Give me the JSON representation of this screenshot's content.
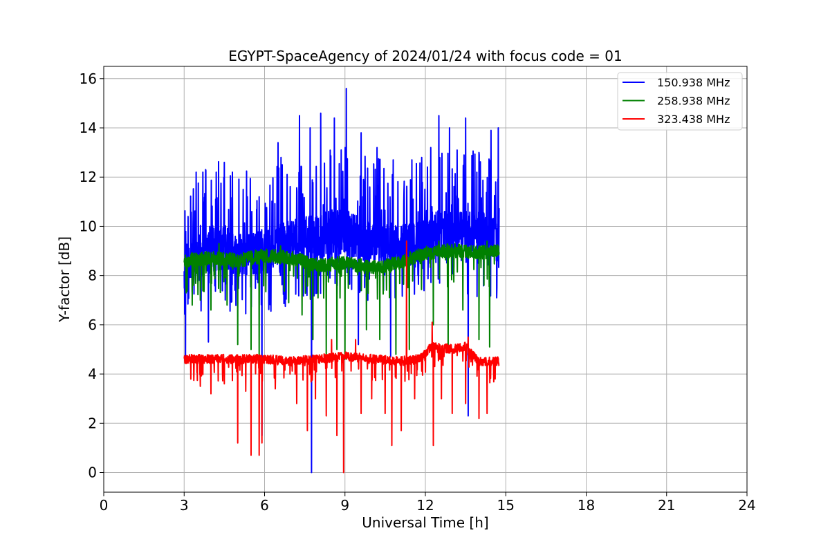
{
  "chart_data": {
    "type": "line",
    "title": "EGYPT-SpaceAgency of 2024/01/24 with focus code = 01",
    "xlabel": "Universal Time [h]",
    "ylabel": "Y-factor [dB]",
    "xlim": [
      0,
      24
    ],
    "ylim": [
      -0.8,
      16.5
    ],
    "xticks": [
      0,
      3,
      6,
      9,
      12,
      15,
      18,
      21,
      24
    ],
    "yticks": [
      0,
      2,
      4,
      6,
      8,
      10,
      12,
      14,
      16
    ],
    "grid": true,
    "legend_position": "top-right",
    "time_range": [
      3.0,
      14.75
    ],
    "series": [
      {
        "name": "150.938 MHz",
        "color": "#0000ff",
        "baseline": [
          [
            3.0,
            8.3
          ],
          [
            3.5,
            8.8
          ],
          [
            4.0,
            9.0
          ],
          [
            4.5,
            9.2
          ],
          [
            5.0,
            8.8
          ],
          [
            5.5,
            9.0
          ],
          [
            6.0,
            9.0
          ],
          [
            6.5,
            9.2
          ],
          [
            7.0,
            9.4
          ],
          [
            7.5,
            9.5
          ],
          [
            8.0,
            9.6
          ],
          [
            8.5,
            9.8
          ],
          [
            9.0,
            9.8
          ],
          [
            9.5,
            9.6
          ],
          [
            10.0,
            9.4
          ],
          [
            10.5,
            9.3
          ],
          [
            11.0,
            9.2
          ],
          [
            11.5,
            9.3
          ],
          [
            12.0,
            9.6
          ],
          [
            12.5,
            9.8
          ],
          [
            13.0,
            9.7
          ],
          [
            13.5,
            9.8
          ],
          [
            14.0,
            9.7
          ],
          [
            14.5,
            9.6
          ],
          [
            14.75,
            9.5
          ]
        ],
        "noise": 1.1,
        "peaks": [
          [
            3.15,
            10.4
          ],
          [
            3.45,
            12.2
          ],
          [
            3.7,
            12.2
          ],
          [
            4.2,
            12.2
          ],
          [
            4.5,
            12.6
          ],
          [
            4.8,
            12.2
          ],
          [
            5.2,
            11.5
          ],
          [
            5.8,
            11.2
          ],
          [
            6.5,
            13.4
          ],
          [
            7.3,
            14.5
          ],
          [
            7.7,
            14.0
          ],
          [
            8.1,
            14.6
          ],
          [
            8.6,
            14.4
          ],
          [
            9.05,
            15.6
          ],
          [
            9.6,
            13.8
          ],
          [
            10.2,
            13.2
          ],
          [
            10.8,
            12.7
          ],
          [
            11.5,
            12.7
          ],
          [
            12.2,
            13.2
          ],
          [
            12.5,
            14.5
          ],
          [
            12.9,
            14.0
          ],
          [
            13.5,
            14.4
          ],
          [
            14.0,
            13.0
          ],
          [
            14.45,
            13.9
          ],
          [
            14.72,
            14.0
          ]
        ],
        "dips": [
          [
            3.05,
            4.6
          ],
          [
            3.9,
            5.3
          ],
          [
            5.9,
            1.5
          ],
          [
            7.75,
            0.0
          ],
          [
            9.5,
            5.2
          ],
          [
            10.7,
            4.7
          ],
          [
            13.6,
            2.3
          ]
        ]
      },
      {
        "name": "258.938 MHz",
        "color": "#008000",
        "baseline": [
          [
            3.0,
            8.6
          ],
          [
            4.0,
            8.7
          ],
          [
            5.0,
            8.6
          ],
          [
            6.0,
            8.8
          ],
          [
            7.0,
            8.7
          ],
          [
            8.0,
            8.4
          ],
          [
            9.0,
            8.5
          ],
          [
            10.0,
            8.3
          ],
          [
            11.0,
            8.5
          ],
          [
            12.0,
            8.9
          ],
          [
            13.0,
            9.0
          ],
          [
            14.0,
            8.9
          ],
          [
            14.75,
            9.0
          ]
        ],
        "noise": 0.3,
        "peaks": [
          [
            4.3,
            9.3
          ],
          [
            6.6,
            9.2
          ],
          [
            12.5,
            9.4
          ],
          [
            14.3,
            9.4
          ]
        ],
        "dips": [
          [
            3.3,
            6.8
          ],
          [
            3.6,
            7.0
          ],
          [
            4.0,
            6.6
          ],
          [
            4.6,
            6.8
          ],
          [
            5.0,
            5.2
          ],
          [
            5.5,
            5.0
          ],
          [
            5.8,
            4.8
          ],
          [
            6.9,
            6.9
          ],
          [
            7.4,
            6.4
          ],
          [
            7.8,
            5.4
          ],
          [
            8.3,
            4.8
          ],
          [
            8.7,
            5.0
          ],
          [
            9.0,
            4.6
          ],
          [
            9.8,
            5.8
          ],
          [
            10.3,
            5.4
          ],
          [
            10.9,
            4.8
          ],
          [
            11.4,
            5.0
          ],
          [
            12.3,
            6.0
          ],
          [
            12.85,
            4.9
          ],
          [
            13.4,
            6.6
          ],
          [
            14.0,
            5.4
          ],
          [
            14.4,
            5.1
          ]
        ]
      },
      {
        "name": "323.438 MHz",
        "color": "#ff0000",
        "baseline": [
          [
            3.0,
            4.6
          ],
          [
            4.0,
            4.6
          ],
          [
            5.0,
            4.6
          ],
          [
            6.0,
            4.6
          ],
          [
            7.0,
            4.5
          ],
          [
            8.0,
            4.6
          ],
          [
            9.0,
            4.7
          ],
          [
            10.0,
            4.6
          ],
          [
            11.0,
            4.5
          ],
          [
            11.8,
            4.6
          ],
          [
            12.2,
            5.1
          ],
          [
            13.0,
            5.0
          ],
          [
            13.5,
            5.1
          ],
          [
            14.0,
            4.5
          ],
          [
            14.75,
            4.5
          ]
        ],
        "noise": 0.2,
        "peaks": [
          [
            8.5,
            5.4
          ],
          [
            9.4,
            5.4
          ],
          [
            11.3,
            9.4
          ],
          [
            12.25,
            6.1
          ],
          [
            13.6,
            5.5
          ]
        ],
        "dips": [
          [
            3.6,
            3.5
          ],
          [
            4.0,
            3.2
          ],
          [
            4.5,
            3.6
          ],
          [
            5.0,
            1.2
          ],
          [
            5.3,
            3.3
          ],
          [
            5.5,
            0.7
          ],
          [
            5.8,
            0.7
          ],
          [
            5.9,
            1.2
          ],
          [
            6.4,
            3.4
          ],
          [
            7.2,
            2.8
          ],
          [
            7.6,
            1.7
          ],
          [
            7.9,
            3.0
          ],
          [
            8.3,
            2.3
          ],
          [
            8.7,
            1.5
          ],
          [
            8.95,
            0.0
          ],
          [
            9.6,
            2.4
          ],
          [
            10.0,
            3.0
          ],
          [
            10.5,
            2.4
          ],
          [
            10.75,
            1.1
          ],
          [
            11.1,
            1.7
          ],
          [
            11.6,
            3.0
          ],
          [
            12.3,
            1.1
          ],
          [
            12.6,
            3.0
          ],
          [
            13.0,
            2.4
          ],
          [
            13.5,
            2.8
          ],
          [
            14.0,
            2.2
          ],
          [
            14.3,
            2.4
          ],
          [
            14.6,
            3.8
          ]
        ]
      }
    ]
  }
}
